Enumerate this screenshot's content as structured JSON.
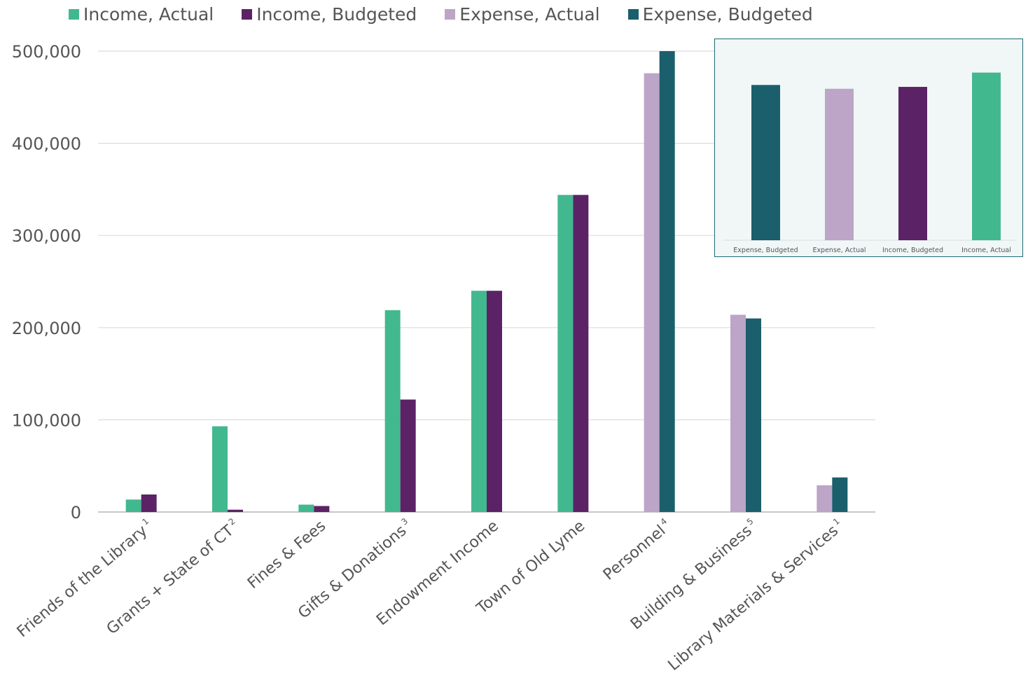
{
  "chart_data": [
    {
      "type": "bar",
      "title": "",
      "xlabel": "",
      "ylabel": "",
      "ylim": [
        0,
        500000
      ],
      "yticks": [
        0,
        100000,
        200000,
        300000,
        400000,
        500000
      ],
      "ytick_labels": [
        "0",
        "100,000",
        "200,000",
        "300,000",
        "400,000",
        "500,000"
      ],
      "grid": true,
      "legend_position": "top",
      "categories": [
        {
          "label": "Friends of the Library",
          "sup": "1"
        },
        {
          "label": "Grants + State of CT",
          "sup": "2"
        },
        {
          "label": "Fines & Fees",
          "sup": ""
        },
        {
          "label": "Gifts & Donations",
          "sup": "3"
        },
        {
          "label": "Endowment Income",
          "sup": ""
        },
        {
          "label": "Town of Old Lyme",
          "sup": ""
        },
        {
          "label": "Personnel",
          "sup": "4"
        },
        {
          "label": "Building & Business",
          "sup": "5"
        },
        {
          "label": "Library Materials & Services",
          "sup": "1"
        }
      ],
      "series": [
        {
          "name": "Income, Actual",
          "color": "#42b88f",
          "values": [
            13500,
            93000,
            8000,
            219000,
            240000,
            344000,
            null,
            null,
            null
          ]
        },
        {
          "name": "Income, Budgeted",
          "color": "#5c2266",
          "values": [
            19000,
            2500,
            6500,
            122000,
            240000,
            344000,
            null,
            null,
            null
          ]
        },
        {
          "name": "Expense, Actual",
          "color": "#bca5c6",
          "values": [
            null,
            null,
            null,
            null,
            null,
            null,
            476000,
            214000,
            29000
          ]
        },
        {
          "name": "Expense, Budgeted",
          "color": "#1a5f6b",
          "values": [
            null,
            null,
            null,
            null,
            null,
            null,
            500000,
            210000,
            37500
          ]
        }
      ]
    },
    {
      "type": "bar",
      "title": "",
      "grid": false,
      "categories": [
        "Expense, Budgeted",
        "Expense, Actual",
        "Income, Budgeted",
        "Income, Actual"
      ],
      "colors": [
        "#1a5f6b",
        "#bca5c6",
        "#5c2266",
        "#42b88f"
      ],
      "relative_values": [
        0.815,
        0.795,
        0.805,
        0.88
      ]
    }
  ]
}
